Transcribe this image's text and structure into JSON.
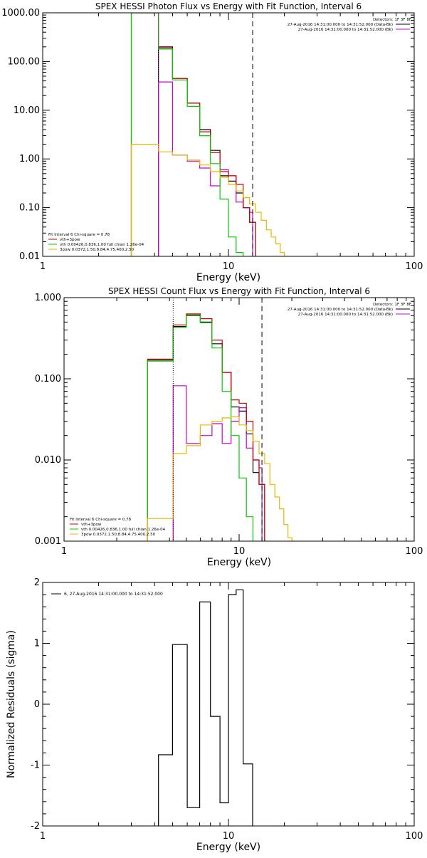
{
  "chart_data": [
    {
      "type": "line",
      "title": "SPEX HESSI Photon Flux vs Energy with Fit Function, Interval 6",
      "xlabel": "Energy (keV)",
      "ylabel": "",
      "xscale": "log",
      "yscale": "log",
      "xlim": [
        1,
        100
      ],
      "ylim": [
        0.01,
        1000
      ],
      "x_ticks": [
        "1",
        "10",
        "100"
      ],
      "y_ticks": [
        "0.01",
        "0.10",
        "1.00",
        "10.00",
        "100.00",
        "1000.00"
      ],
      "legend_top_right": {
        "header": "Detectors: 1F 3F 8F",
        "entries": [
          {
            "label": "27-Aug-2016 14:31:00.000 to 14:31:52.000 (Data-Bk)",
            "color": "#000000"
          },
          {
            "label": "27-Aug-2016 14:31:00.000 to 14:31:52.000 (Bk)",
            "color": "#cc00cc"
          }
        ]
      },
      "legend_bottom_left": {
        "header": "Fit Interval 6   Chi-square = 0.78",
        "entries": [
          {
            "label": "vth+3pow",
            "color": "#cc0000"
          },
          {
            "label": "vth 0.00426,0.836,1.00  full chian 1.26e-04",
            "color": "#00cc00"
          },
          {
            "label": "3pow 0.0372,1.50,8.84,4.75,400,2.50",
            "color": "#e6b800"
          }
        ]
      },
      "vlines": [
        {
          "x": 4.2,
          "style": "dotted",
          "color": "#cc00cc"
        },
        {
          "x": 13.5,
          "style": "dashed",
          "color": "#000000"
        }
      ],
      "series": [
        {
          "name": "Data-Bk",
          "color": "#000000",
          "edges": [
            4.2,
            5,
            6,
            7,
            8,
            9,
            10,
            11,
            12,
            13,
            14
          ],
          "values": [
            200,
            45,
            14,
            4,
            1.5,
            0.45,
            0.35,
            0.2,
            0.1,
            0.05
          ]
        },
        {
          "name": "Bk",
          "color": "#cc00cc",
          "edges": [
            4.2,
            5,
            6,
            7,
            8,
            9,
            10,
            11,
            12,
            13,
            13.5
          ],
          "values": [
            38,
            1.2,
            0.9,
            0.65,
            0.28,
            0.6,
            0.45,
            0.13,
            0.1,
            0.08
          ]
        },
        {
          "name": "vth+3pow",
          "color": "#cc0000",
          "edges": [
            3,
            4.2,
            5,
            6,
            7,
            8,
            9,
            10,
            11,
            12,
            13,
            14
          ],
          "values": [
            1000,
            190,
            45,
            14,
            3.6,
            1.35,
            0.55,
            0.45,
            0.3,
            0.1,
            0.05
          ]
        },
        {
          "name": "vth",
          "color": "#00cc00",
          "edges": [
            3,
            4.2,
            5,
            6,
            7,
            8,
            9,
            10,
            11,
            12
          ],
          "values": [
            1000,
            180,
            42,
            12,
            3.0,
            0.8,
            0.15,
            0.025,
            0.012
          ]
        },
        {
          "name": "3pow",
          "color": "#e6b800",
          "edges": [
            3,
            4.2,
            5,
            6,
            7,
            8,
            9,
            10,
            11,
            12,
            13,
            14,
            15,
            16,
            17,
            18,
            19,
            20
          ],
          "values": [
            2.0,
            1.4,
            1.2,
            0.95,
            0.75,
            0.55,
            0.42,
            0.3,
            0.22,
            0.16,
            0.12,
            0.08,
            0.055,
            0.035,
            0.025,
            0.018,
            0.012
          ]
        }
      ]
    },
    {
      "type": "line",
      "title": "SPEX HESSI Count Flux vs Energy with Fit Function, Interval 6",
      "xlabel": "Energy (keV)",
      "ylabel": "",
      "xscale": "log",
      "yscale": "log",
      "xlim": [
        1,
        100
      ],
      "ylim": [
        0.001,
        1
      ],
      "x_ticks": [
        "1",
        "10",
        "100"
      ],
      "y_ticks": [
        "0.001",
        "0.010",
        "0.100",
        "1.000"
      ],
      "legend_top_right": {
        "header": "Detectors: 1F 3F 8F",
        "entries": [
          {
            "label": "27-Aug-2016 14:31:00.000 to 14:31:52.000 (Data-Bk)",
            "color": "#000000"
          },
          {
            "label": "27-Aug-2016 14:31:00.000 to 14:31:52.000 (Bk)",
            "color": "#cc00cc"
          }
        ]
      },
      "legend_bottom_left": {
        "header": "Fit Interval 6   Chi-square = 0.78",
        "entries": [
          {
            "label": "vth+3pow",
            "color": "#cc0000"
          },
          {
            "label": "vth 0.00426,0.836,1.00  full chian 1.26e-04",
            "color": "#00cc00"
          },
          {
            "label": "3pow 0.0372,1.50,8.84,4.75,400,2.50",
            "color": "#e6b800"
          }
        ]
      },
      "vlines": [
        {
          "x": 4.2,
          "style": "dotted",
          "color": "#000000"
        },
        {
          "x": 13.5,
          "style": "dashed",
          "color": "#000000"
        }
      ],
      "series": [
        {
          "name": "Data-Bk",
          "color": "#000000",
          "edges": [
            3,
            4.2,
            5,
            6,
            7,
            8,
            9,
            10,
            11,
            12,
            13,
            14
          ],
          "values": [
            0.17,
            0.44,
            0.61,
            0.5,
            0.27,
            0.12,
            0.045,
            0.04,
            0.021,
            0.007,
            0.005
          ]
        },
        {
          "name": "Bk",
          "color": "#cc00cc",
          "edges": [
            4.2,
            5,
            6,
            7,
            8,
            9,
            10,
            11,
            12,
            13,
            13.5
          ],
          "values": [
            0.082,
            0.016,
            0.02,
            0.028,
            0.016,
            0.03,
            0.044,
            0.014,
            0.01,
            0.008
          ]
        },
        {
          "name": "vth+3pow",
          "color": "#cc0000",
          "edges": [
            3,
            4.2,
            5,
            6,
            7,
            8,
            9,
            10,
            11,
            12,
            13,
            14
          ],
          "values": [
            0.175,
            0.46,
            0.63,
            0.55,
            0.3,
            0.12,
            0.055,
            0.05,
            0.03,
            0.01,
            0.005
          ]
        },
        {
          "name": "vth",
          "color": "#00cc00",
          "edges": [
            3,
            4.2,
            5,
            6,
            7,
            8,
            9,
            10,
            11,
            12
          ],
          "values": [
            0.165,
            0.43,
            0.6,
            0.49,
            0.24,
            0.07,
            0.02,
            0.006,
            0.002
          ]
        },
        {
          "name": "3pow",
          "color": "#e6b800",
          "edges": [
            3,
            4.2,
            5,
            6,
            7,
            8,
            9,
            10,
            11,
            12,
            13,
            14,
            15,
            16,
            17,
            18,
            19,
            20
          ],
          "values": [
            0.0019,
            0.012,
            0.015,
            0.027,
            0.03,
            0.033,
            0.034,
            0.027,
            0.023,
            0.017,
            0.012,
            0.009,
            0.005,
            0.0035,
            0.0025,
            0.0016,
            0.0011
          ]
        }
      ]
    },
    {
      "type": "line",
      "title": "",
      "xlabel": "Energy (keV)",
      "ylabel": "Normalized Residuals (sigma)",
      "xscale": "log",
      "yscale": "linear",
      "xlim": [
        1,
        100
      ],
      "ylim": [
        -2,
        2
      ],
      "x_ticks": [
        "1",
        "10",
        "100"
      ],
      "y_ticks": [
        "-2",
        "-1",
        "0",
        "1",
        "2"
      ],
      "legend_top_left": {
        "entries": [
          {
            "label": "6, 27-Aug-2016 14:31:00.000 to 14:31:52.000",
            "color": "#000000"
          }
        ]
      },
      "series": [
        {
          "name": "6, 27-Aug-2016 14:31:00.000 to 14:31:52.000",
          "color": "#000000",
          "edges": [
            4.2,
            5,
            6,
            7,
            8,
            9,
            10,
            11,
            12,
            13.5
          ],
          "values": [
            -0.83,
            0.98,
            -1.7,
            1.68,
            -0.2,
            -1.62,
            1.8,
            1.88,
            -0.98
          ],
          "bottom": -2
        }
      ]
    }
  ]
}
